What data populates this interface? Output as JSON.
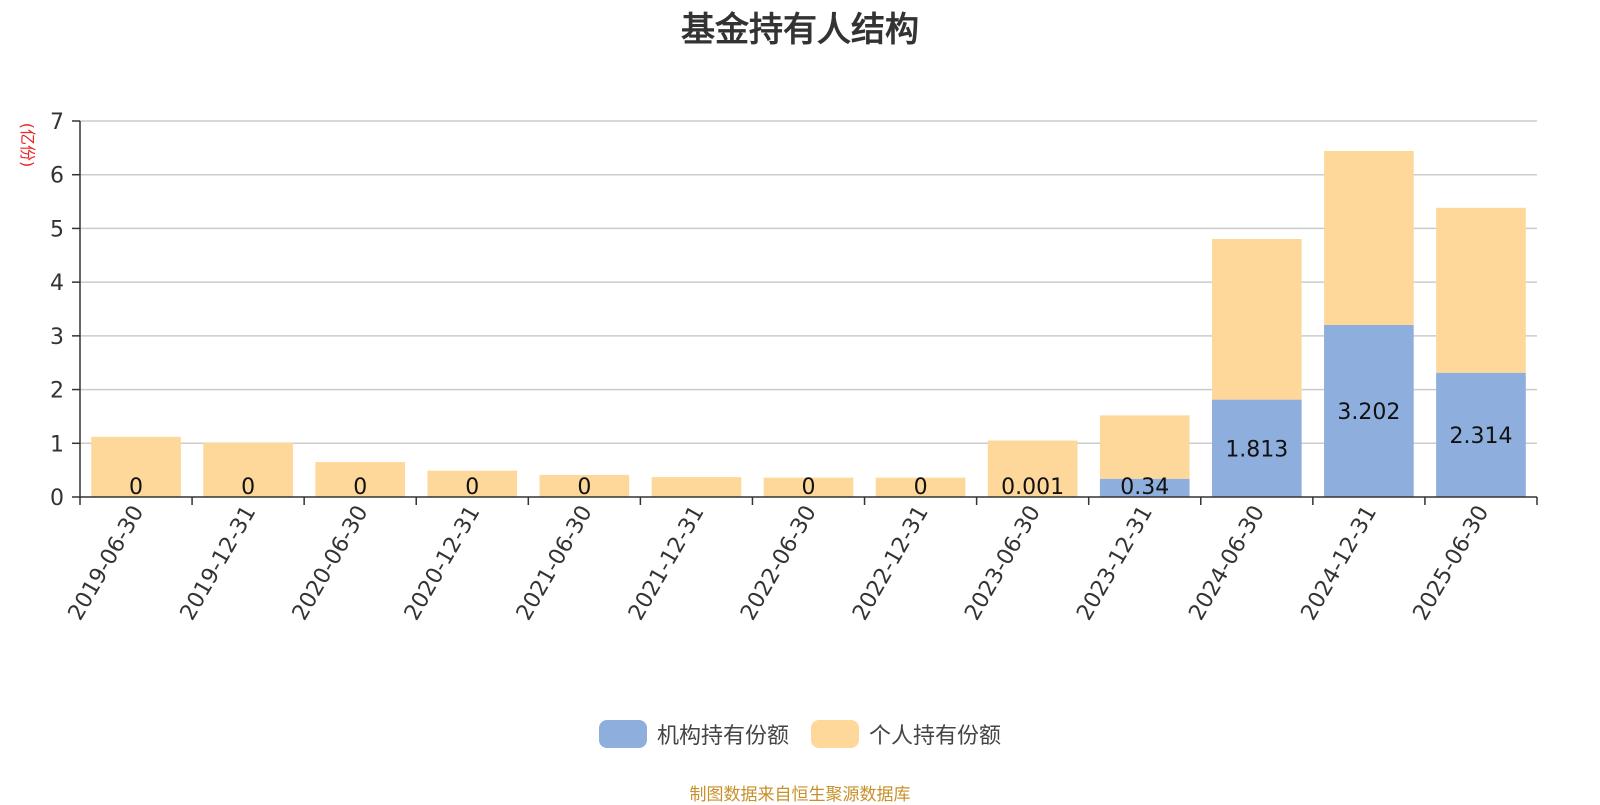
{
  "chart_data": {
    "type": "bar",
    "stacked": true,
    "title": "基金持有人结构",
    "ylabel": "(亿份)",
    "ylim": [
      0,
      7
    ],
    "yticks": [
      0,
      1,
      2,
      3,
      4,
      5,
      6,
      7
    ],
    "grid": true,
    "legend_position": "bottom",
    "categories": [
      "2019-06-30",
      "2019-12-31",
      "2020-06-30",
      "2020-12-31",
      "2021-06-30",
      "2021-12-31",
      "2022-06-30",
      "2022-12-31",
      "2023-06-30",
      "2023-12-31",
      "2024-06-30",
      "2024-12-31",
      "2025-06-30"
    ],
    "series": [
      {
        "name": "机构持有份额",
        "color": "#8eaedd",
        "values": [
          0,
          0,
          0,
          0,
          0,
          0,
          0,
          0,
          0.001,
          0.34,
          1.813,
          3.202,
          2.314
        ],
        "labels": [
          "0",
          "0",
          "0",
          "0",
          "0",
          "",
          "0",
          "0",
          "0.001",
          "0.34",
          "1.813",
          "3.202",
          "2.314"
        ]
      },
      {
        "name": "个人持有份额",
        "color": "#fdd89a",
        "values": [
          1.12,
          1.01,
          0.65,
          0.49,
          0.41,
          0.37,
          0.36,
          0.36,
          1.05,
          1.18,
          2.99,
          3.24,
          3.07
        ]
      }
    ]
  },
  "source_note": "制图数据来自恒生聚源数据库"
}
